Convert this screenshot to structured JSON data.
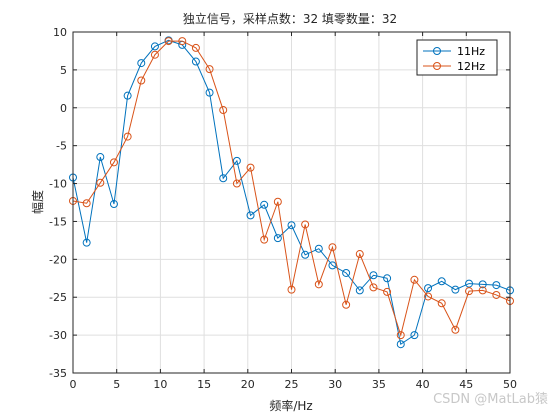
{
  "chart_data": {
    "type": "line",
    "title": "独立信号，采样点数：32 填零数量：32",
    "xlabel": "频率/Hz",
    "ylabel": "幅度",
    "xlim": [
      0,
      50
    ],
    "ylim": [
      -35,
      10
    ],
    "xticks": [
      0,
      5,
      10,
      15,
      20,
      25,
      30,
      35,
      40,
      45,
      50
    ],
    "yticks": [
      10,
      5,
      0,
      -5,
      -10,
      -15,
      -20,
      -25,
      -30,
      -35
    ],
    "grid": true,
    "legend_position": "top-right",
    "series": [
      {
        "name": "11Hz",
        "color": "#0072BD",
        "marker": "circle",
        "x": [
          0,
          1.5625,
          3.125,
          4.6875,
          6.25,
          7.8125,
          9.375,
          10.9375,
          12.5,
          14.0625,
          15.625,
          17.1875,
          18.75,
          20.3125,
          21.875,
          23.4375,
          25,
          26.5625,
          28.125,
          29.6875,
          31.25,
          32.8125,
          34.375,
          35.9375,
          37.5,
          39.0625,
          40.625,
          42.1875,
          43.75,
          45.3125,
          46.875,
          48.4375,
          50
        ],
        "y": [
          -9.2,
          -17.8,
          -6.5,
          -12.7,
          1.6,
          5.9,
          8.1,
          8.9,
          8.3,
          6.1,
          2.0,
          -9.3,
          -7.0,
          -14.2,
          -12.8,
          -17.2,
          -15.5,
          -19.4,
          -18.6,
          -20.8,
          -21.8,
          -24.1,
          -22.1,
          -22.5,
          -31.2,
          -30.0,
          -23.8,
          -22.9,
          -24.0,
          -23.2,
          -23.3,
          -23.4,
          -24.1
        ]
      },
      {
        "name": "12Hz",
        "color": "#D95319",
        "marker": "circle",
        "x": [
          0,
          1.5625,
          3.125,
          4.6875,
          6.25,
          7.8125,
          9.375,
          10.9375,
          12.5,
          14.0625,
          15.625,
          17.1875,
          18.75,
          20.3125,
          21.875,
          23.4375,
          25,
          26.5625,
          28.125,
          29.6875,
          31.25,
          32.8125,
          34.375,
          35.9375,
          37.5,
          39.0625,
          40.625,
          42.1875,
          43.75,
          45.3125,
          46.875,
          48.4375,
          50
        ],
        "y": [
          -12.3,
          -12.6,
          -9.9,
          -7.2,
          -3.8,
          3.6,
          7.0,
          8.8,
          8.8,
          7.9,
          5.1,
          -0.3,
          -10.0,
          -7.9,
          -17.4,
          -12.4,
          -24.0,
          -15.4,
          -23.3,
          -18.4,
          -26.0,
          -19.3,
          -23.7,
          -24.3,
          -30.0,
          -22.7,
          -24.9,
          -25.8,
          -29.3,
          -24.2,
          -24.1,
          -24.7,
          -25.5
        ]
      }
    ]
  },
  "watermark": "CSDN @MatLab猿"
}
